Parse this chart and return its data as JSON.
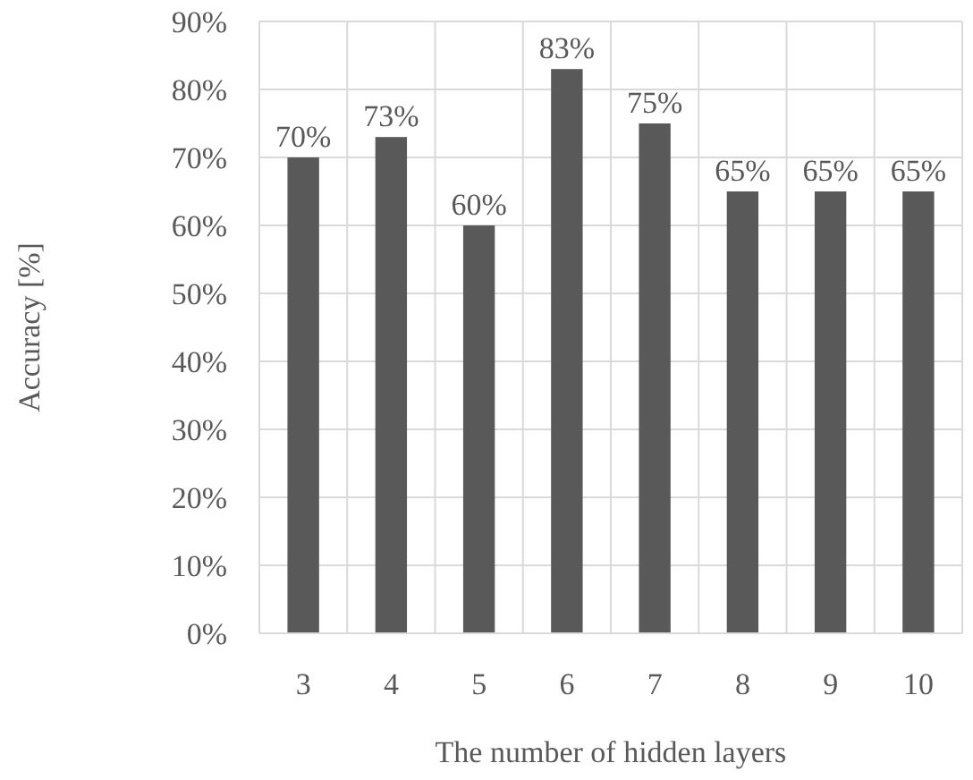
{
  "chart_data": {
    "type": "bar",
    "xlabel": "The number of hidden layers",
    "ylabel": "Accuracy [%]",
    "categories": [
      "3",
      "4",
      "5",
      "6",
      "7",
      "8",
      "9",
      "10"
    ],
    "values": [
      70,
      73,
      60,
      83,
      75,
      65,
      65,
      65
    ],
    "value_labels": [
      "70%",
      "73%",
      "60%",
      "83%",
      "75%",
      "65%",
      "65%",
      "65%"
    ],
    "color": "#595959",
    "ylim": [
      0,
      90
    ],
    "yticks": [
      {
        "value": 0,
        "label": "0%"
      },
      {
        "value": 10,
        "label": "10%"
      },
      {
        "value": 20,
        "label": "20%"
      },
      {
        "value": 30,
        "label": "30%"
      },
      {
        "value": 40,
        "label": "40%"
      },
      {
        "value": 50,
        "label": "50%"
      },
      {
        "value": 60,
        "label": "60%"
      },
      {
        "value": 70,
        "label": "70%"
      },
      {
        "value": 80,
        "label": "80%"
      },
      {
        "value": 90,
        "label": "90%"
      }
    ],
    "grid": true
  }
}
